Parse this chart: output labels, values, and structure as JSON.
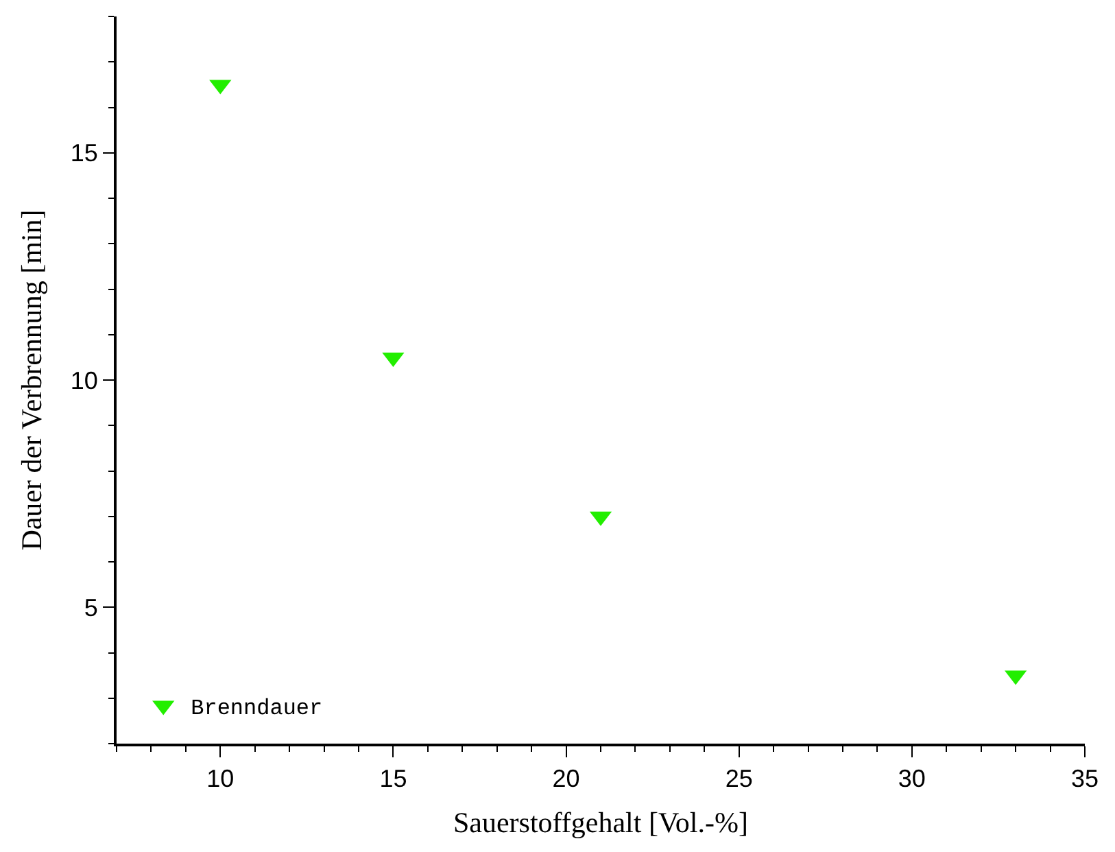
{
  "chart_data": {
    "type": "scatter",
    "xlabel": "Sauerstoffgehalt [Vol.-%]",
    "ylabel": "Dauer der Verbrennung [min]",
    "x": [
      10,
      15,
      21,
      33
    ],
    "series": [
      {
        "name": "Brenndauer",
        "color": "#22ee00",
        "values": [
          16.5,
          10.5,
          7.0,
          3.5
        ]
      }
    ],
    "xlim": [
      7,
      35
    ],
    "xticks": [
      10,
      15,
      20,
      25,
      30,
      35
    ],
    "ylim": [
      2,
      18
    ],
    "yticks": [
      5,
      10,
      15
    ],
    "marker": "triangle-down",
    "legend": "bottom left"
  }
}
